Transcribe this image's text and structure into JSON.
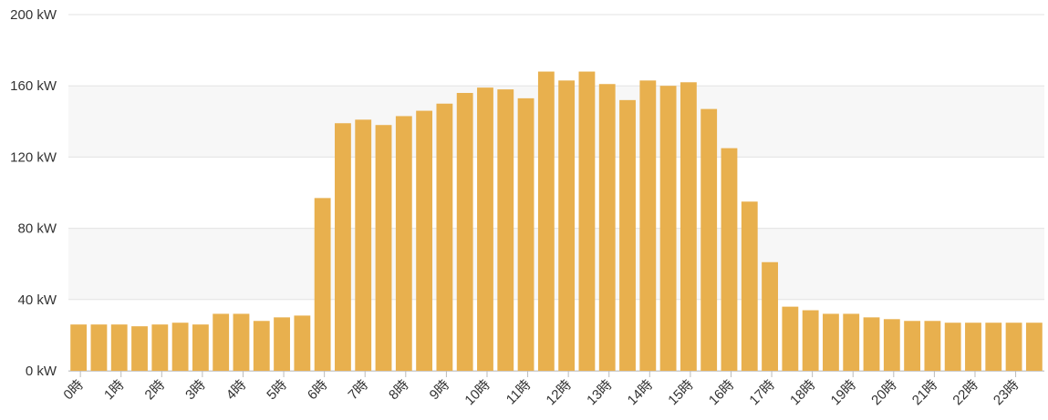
{
  "chart_data": {
    "type": "bar",
    "title": "",
    "xlabel": "",
    "ylabel": "",
    "ylim": [
      0,
      200
    ],
    "grid": true,
    "legend": "none",
    "bar_color": "#E8B04E",
    "band_color": "#F7F7F7",
    "y_ticks": [
      {
        "value": 0,
        "label": "0 kW"
      },
      {
        "value": 40,
        "label": "40 kW"
      },
      {
        "value": 80,
        "label": "80 kW"
      },
      {
        "value": 120,
        "label": "120 kW"
      },
      {
        "value": 160,
        "label": "160 kW"
      },
      {
        "value": 200,
        "label": "200 kW"
      }
    ],
    "x_tick_labels": [
      "0時",
      "1時",
      "2時",
      "3時",
      "4時",
      "5時",
      "6時",
      "7時",
      "8時",
      "9時",
      "10時",
      "11時",
      "12時",
      "13時",
      "14時",
      "15時",
      "16時",
      "17時",
      "18時",
      "19時",
      "20時",
      "21時",
      "22時",
      "23時"
    ],
    "categories": [
      "0:00",
      "0:30",
      "1:00",
      "1:30",
      "2:00",
      "2:30",
      "3:00",
      "3:30",
      "4:00",
      "4:30",
      "5:00",
      "5:30",
      "6:00",
      "6:30",
      "7:00",
      "7:30",
      "8:00",
      "8:30",
      "9:00",
      "9:30",
      "10:00",
      "10:30",
      "11:00",
      "11:30",
      "12:00",
      "12:30",
      "13:00",
      "13:30",
      "14:00",
      "14:30",
      "15:00",
      "15:30",
      "16:00",
      "16:30",
      "17:00",
      "17:30",
      "18:00",
      "18:30",
      "19:00",
      "19:30",
      "20:00",
      "20:30",
      "21:00",
      "21:30",
      "22:00",
      "22:30",
      "23:00",
      "23:30"
    ],
    "values": [
      26,
      26,
      26,
      25,
      26,
      27,
      26,
      32,
      32,
      28,
      30,
      31,
      97,
      139,
      141,
      138,
      143,
      146,
      150,
      156,
      159,
      158,
      153,
      168,
      163,
      168,
      161,
      152,
      163,
      160,
      162,
      147,
      125,
      95,
      61,
      36,
      34,
      32,
      32,
      30,
      29,
      28,
      28,
      27,
      27,
      27,
      27,
      27
    ]
  }
}
